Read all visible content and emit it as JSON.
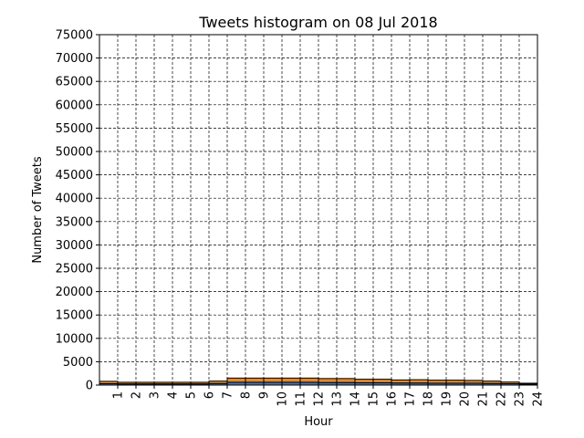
{
  "chart_data": {
    "type": "bar",
    "title": "Tweets histogram on 08 Jul 2018",
    "xlabel": "Hour",
    "ylabel": "Number of Tweets",
    "ylim": [
      0,
      75000
    ],
    "xlim": [
      0,
      24
    ],
    "yticks": [
      0,
      5000,
      10000,
      15000,
      20000,
      25000,
      30000,
      35000,
      40000,
      45000,
      50000,
      55000,
      60000,
      65000,
      70000,
      75000
    ],
    "xticks": [
      "1",
      "2",
      "3",
      "4",
      "5",
      "6",
      "7",
      "8",
      "9",
      "10",
      "11",
      "12",
      "13",
      "14",
      "15",
      "16",
      "17",
      "18",
      "19",
      "20",
      "21",
      "22",
      "23",
      "24"
    ],
    "grid": true,
    "stacked": true,
    "bin_edges": [
      0,
      1,
      2,
      3,
      4,
      5,
      6,
      7,
      8,
      9,
      10,
      11,
      12,
      13,
      14,
      15,
      16,
      17,
      18,
      19,
      20,
      21,
      22,
      23,
      24
    ],
    "series": [
      {
        "color": "#4c72b0",
        "values": [
          300,
          250,
          250,
          250,
          250,
          250,
          350,
          600,
          600,
          600,
          600,
          600,
          550,
          550,
          500,
          500,
          450,
          450,
          400,
          400,
          400,
          350,
          300,
          200
        ]
      },
      {
        "color": "#e08a2e",
        "values": [
          500,
          350,
          350,
          350,
          350,
          350,
          500,
          900,
          900,
          900,
          900,
          900,
          850,
          850,
          750,
          750,
          650,
          700,
          650,
          650,
          600,
          500,
          350,
          200
        ]
      }
    ]
  }
}
